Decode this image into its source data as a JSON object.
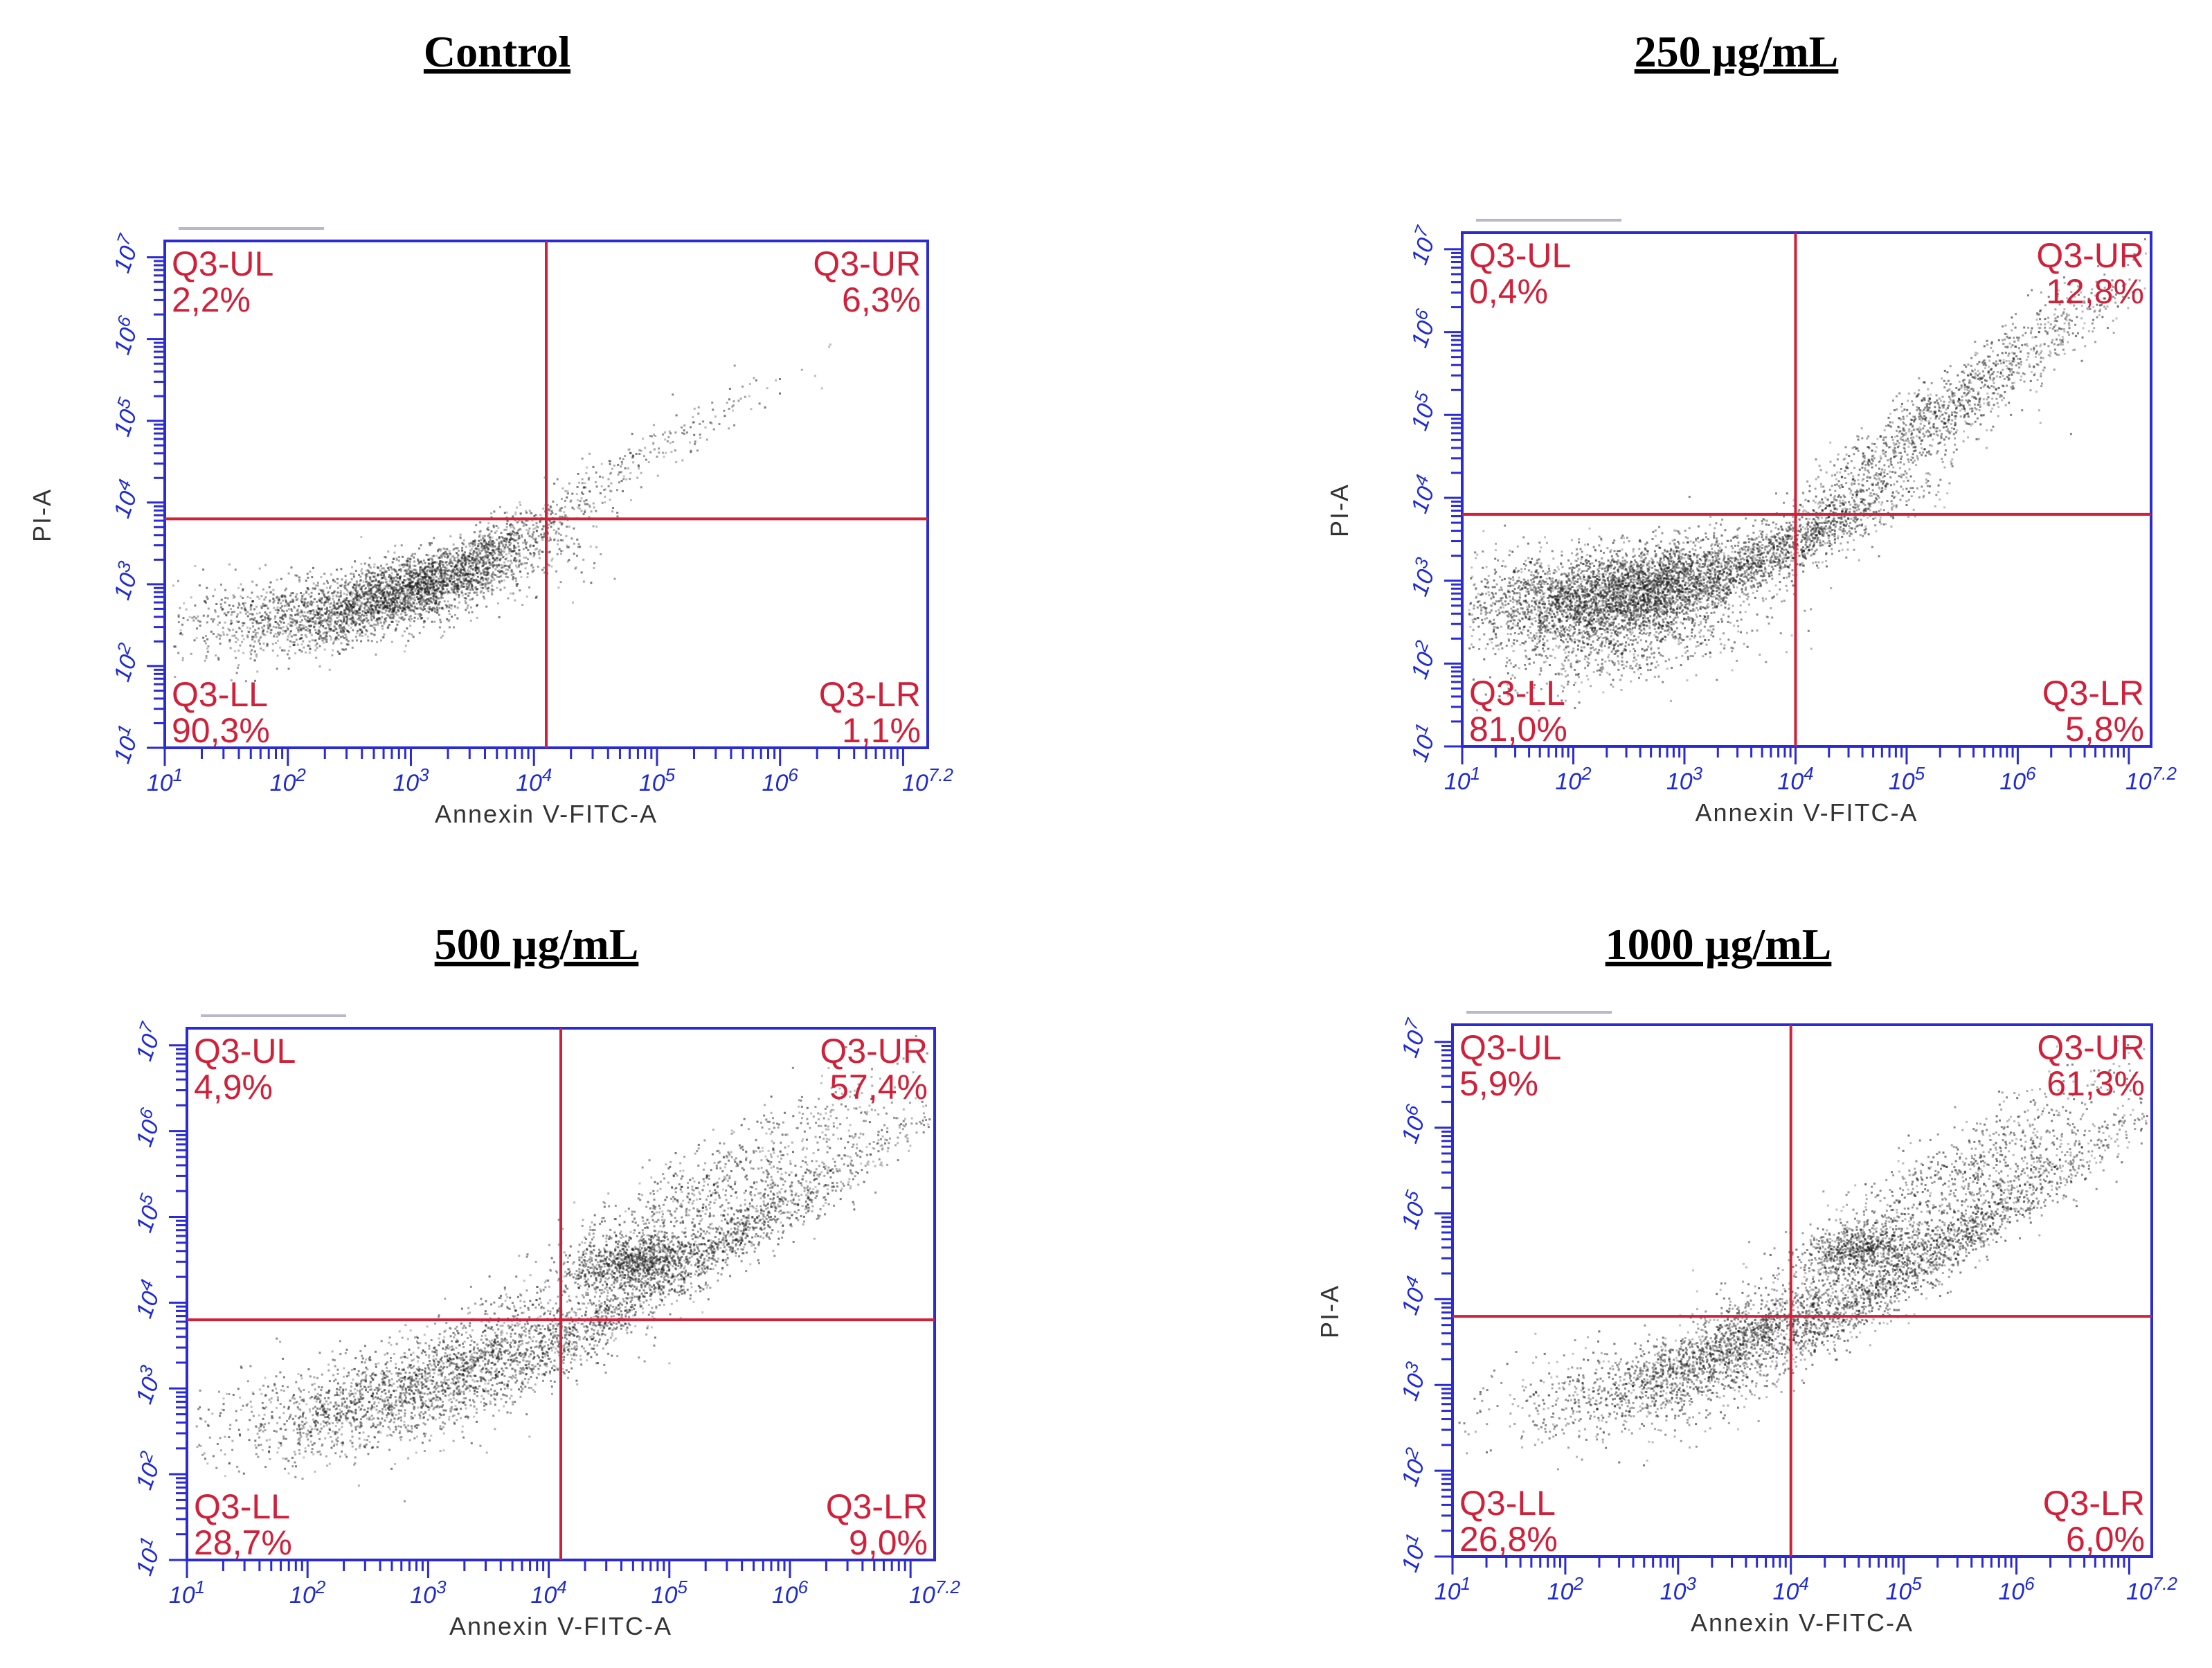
{
  "figure": {
    "colors": {
      "frame": "#2b2bd6",
      "gate": "#d0213a",
      "ticks": "#1f2bd1",
      "events": "#1a1a1a"
    }
  },
  "chart_data": [
    {
      "type": "scatter",
      "title": "Control",
      "xlabel": "Annexin V-FITC-A",
      "ylabel": "PI-A",
      "xscale": "log",
      "yscale": "log",
      "xlim": [
        1,
        7.2
      ],
      "ylim": [
        1,
        7.2
      ],
      "x_ticks": [
        "10^1",
        "10^2",
        "10^3",
        "10^4",
        "10^5",
        "10^6",
        "10^7.2"
      ],
      "y_ticks": [
        "10^1",
        "10^2",
        "10^3",
        "10^4",
        "10^5",
        "10^6",
        "10^7"
      ],
      "gate": {
        "x": 4.1,
        "y": 3.8
      },
      "quadrants": [
        {
          "name": "Q3-UL",
          "value": "2,2%"
        },
        {
          "name": "Q3-UR",
          "value": "6,3%"
        },
        {
          "name": "Q3-LL",
          "value": "90,3%"
        },
        {
          "name": "Q3-LR",
          "value": "1,1%"
        }
      ],
      "populations": [
        {
          "x": 2.9,
          "y": 2.9,
          "sx": 0.55,
          "sy": 0.3,
          "rho": 0.7,
          "n": 2600
        },
        {
          "x": 3.6,
          "y": 3.4,
          "sx": 0.45,
          "sy": 0.35,
          "rho": 0.9,
          "n": 700
        },
        {
          "x": 1.8,
          "y": 2.6,
          "sx": 0.5,
          "sy": 0.25,
          "rho": 0.2,
          "n": 500
        },
        {
          "x": 4.9,
          "y": 4.6,
          "sx": 0.6,
          "sy": 0.5,
          "rho": 0.95,
          "n": 220
        }
      ]
    },
    {
      "type": "scatter",
      "title": "250 µg/mL",
      "xlabel": "Annexin V-FITC-A",
      "ylabel": "PI-A",
      "xscale": "log",
      "yscale": "log",
      "xlim": [
        1,
        7.2
      ],
      "ylim": [
        1,
        7.2
      ],
      "x_ticks": [
        "10^1",
        "10^2",
        "10^3",
        "10^4",
        "10^5",
        "10^6",
        "10^7.2"
      ],
      "y_ticks": [
        "10^1",
        "10^2",
        "10^3",
        "10^4",
        "10^5",
        "10^6",
        "10^7"
      ],
      "gate": {
        "x": 4.0,
        "y": 3.8
      },
      "quadrants": [
        {
          "name": "Q3-UL",
          "value": "0,4%"
        },
        {
          "name": "Q3-UR",
          "value": "12,8%"
        },
        {
          "name": "Q3-LL",
          "value": "81,0%"
        },
        {
          "name": "Q3-LR",
          "value": "5,8%"
        }
      ],
      "populations": [
        {
          "x": 2.6,
          "y": 2.9,
          "sx": 0.5,
          "sy": 0.3,
          "rho": 0.5,
          "n": 2600
        },
        {
          "x": 1.8,
          "y": 2.8,
          "sx": 0.55,
          "sy": 0.3,
          "rho": 0.1,
          "n": 1200
        },
        {
          "x": 3.9,
          "y": 3.4,
          "sx": 0.6,
          "sy": 0.4,
          "rho": 0.9,
          "n": 1200
        },
        {
          "x": 5.3,
          "y": 5.0,
          "sx": 0.8,
          "sy": 0.8,
          "rho": 0.95,
          "n": 1400
        },
        {
          "x": 2.5,
          "y": 2.2,
          "sx": 0.6,
          "sy": 0.3,
          "rho": 0.6,
          "n": 500
        }
      ]
    },
    {
      "type": "scatter",
      "title": "500 µg/mL",
      "xlabel": "Annexin V-FITC-A",
      "ylabel": "",
      "xscale": "log",
      "yscale": "log",
      "xlim": [
        1,
        7.2
      ],
      "ylim": [
        1,
        7.2
      ],
      "x_ticks": [
        "10^1",
        "10^2",
        "10^3",
        "10^4",
        "10^5",
        "10^6",
        "10^7.2"
      ],
      "y_ticks": [
        "10^1",
        "10^2",
        "10^3",
        "10^4",
        "10^5",
        "10^6",
        "10^7"
      ],
      "gate": {
        "x": 4.1,
        "y": 3.8
      },
      "quadrants": [
        {
          "name": "Q3-UL",
          "value": "4,9%"
        },
        {
          "name": "Q3-UR",
          "value": "57,4%"
        },
        {
          "name": "Q3-LL",
          "value": "28,7%"
        },
        {
          "name": "Q3-LR",
          "value": "9,0%"
        }
      ],
      "populations": [
        {
          "x": 3.2,
          "y": 3.2,
          "sx": 0.7,
          "sy": 0.45,
          "rho": 0.8,
          "n": 1800
        },
        {
          "x": 2.2,
          "y": 2.8,
          "sx": 0.6,
          "sy": 0.3,
          "rho": 0.3,
          "n": 500
        },
        {
          "x": 4.7,
          "y": 4.5,
          "sx": 0.25,
          "sy": 0.15,
          "rho": 0.4,
          "n": 800
        },
        {
          "x": 5.2,
          "y": 4.5,
          "sx": 0.9,
          "sy": 0.8,
          "rho": 0.97,
          "n": 1600
        },
        {
          "x": 5.2,
          "y": 5.2,
          "sx": 0.8,
          "sy": 0.7,
          "rho": 0.9,
          "n": 900
        }
      ]
    },
    {
      "type": "scatter",
      "title": "1000 µg/mL",
      "xlabel": "Annexin V-FITC-A",
      "ylabel": "PI-A",
      "xscale": "log",
      "yscale": "log",
      "xlim": [
        1,
        7.2
      ],
      "ylim": [
        1,
        7.2
      ],
      "x_ticks": [
        "10^1",
        "10^2",
        "10^3",
        "10^4",
        "10^5",
        "10^6",
        "10^7.2"
      ],
      "y_ticks": [
        "10^1",
        "10^2",
        "10^3",
        "10^4",
        "10^5",
        "10^6",
        "10^7"
      ],
      "gate": {
        "x": 4.0,
        "y": 3.8
      },
      "quadrants": [
        {
          "name": "Q3-UL",
          "value": "5,9%"
        },
        {
          "name": "Q3-UR",
          "value": "61,3%"
        },
        {
          "name": "Q3-LL",
          "value": "26,8%"
        },
        {
          "name": "Q3-LR",
          "value": "6,0%"
        }
      ],
      "populations": [
        {
          "x": 3.5,
          "y": 3.5,
          "sx": 0.6,
          "sy": 0.4,
          "rho": 0.85,
          "n": 1600
        },
        {
          "x": 2.4,
          "y": 2.9,
          "sx": 0.6,
          "sy": 0.3,
          "rho": 0.3,
          "n": 500
        },
        {
          "x": 4.6,
          "y": 4.6,
          "sx": 0.25,
          "sy": 0.15,
          "rho": 0.4,
          "n": 600
        },
        {
          "x": 5.2,
          "y": 4.5,
          "sx": 0.9,
          "sy": 0.8,
          "rho": 0.97,
          "n": 1700
        },
        {
          "x": 5.3,
          "y": 5.3,
          "sx": 0.8,
          "sy": 0.7,
          "rho": 0.9,
          "n": 900
        }
      ]
    }
  ]
}
